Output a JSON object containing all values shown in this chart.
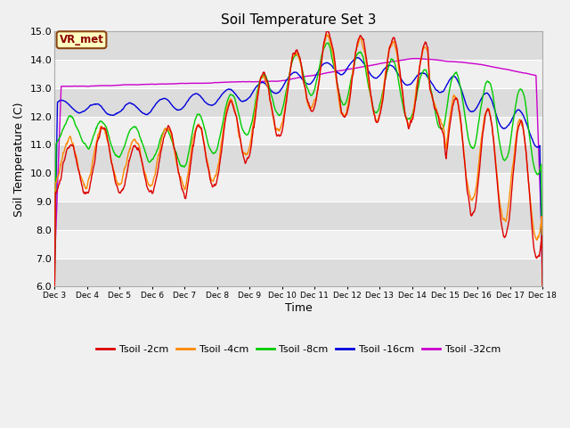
{
  "title": "Soil Temperature Set 3",
  "xlabel": "Time",
  "ylabel": "Soil Temperature (C)",
  "ylim": [
    6.0,
    15.0
  ],
  "yticks": [
    6.0,
    7.0,
    8.0,
    9.0,
    10.0,
    11.0,
    12.0,
    13.0,
    14.0,
    15.0
  ],
  "colors": {
    "2cm": "#dd0000",
    "4cm": "#ff8800",
    "8cm": "#00cc00",
    "16cm": "#0000dd",
    "32cm": "#cc00cc"
  },
  "legend_labels": [
    "Tsoil -2cm",
    "Tsoil -4cm",
    "Tsoil -8cm",
    "Tsoil -16cm",
    "Tsoil -32cm"
  ],
  "xtick_labels": [
    "Dec 3",
    "Dec 4",
    "Dec 5",
    "Dec 6",
    "Dec 7",
    "Dec 8",
    "Dec 9",
    "Dec 10",
    "Dec 11",
    "Dec 12",
    "Dec 13",
    "Dec 14",
    "Dec 15",
    "Dec 16",
    "Dec 17",
    "Dec 18"
  ],
  "n_days": 15,
  "pts_per_day": 96,
  "annotation": "VR_met",
  "fig_bg": "#f0f0f0",
  "strip_light": "#f0f0f0",
  "strip_dark": "#dcdcdc"
}
